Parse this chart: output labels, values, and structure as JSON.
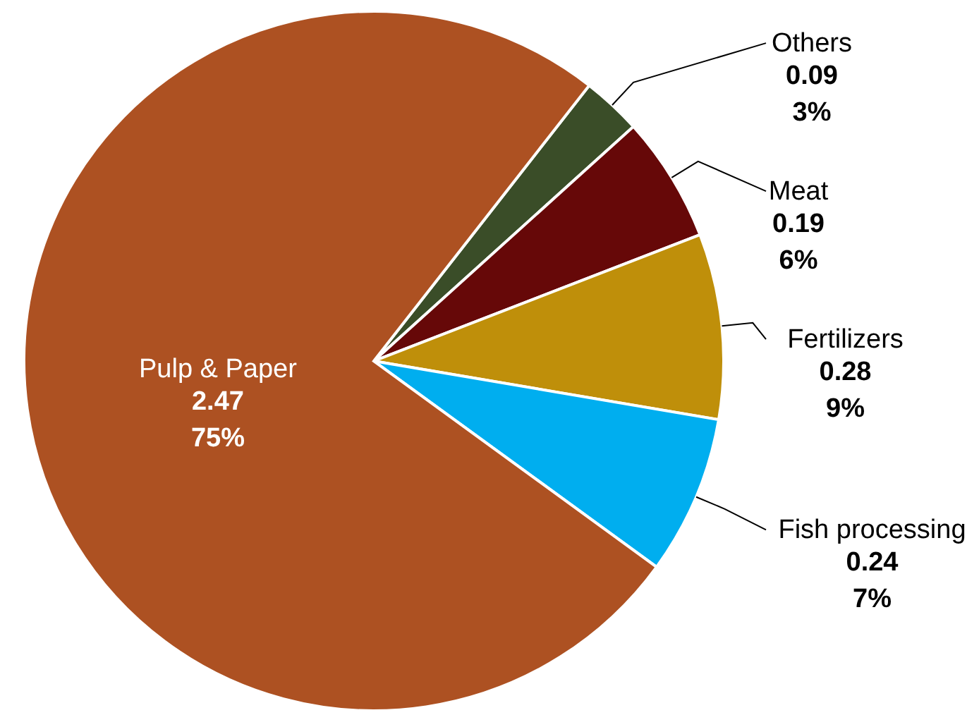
{
  "chart_data": {
    "type": "pie",
    "categories": [
      "Others",
      "Meat",
      "Fertilizers",
      "Fish processing",
      "Pulp & Paper"
    ],
    "values": [
      0.09,
      0.19,
      0.28,
      0.24,
      2.47
    ],
    "colors": [
      "#3a4d28",
      "#660808",
      "#bf8f0a",
      "#00aeef",
      "#ad5122"
    ],
    "value_labels": [
      "0.09\n3%",
      "0.19\n6%",
      "0.28\n9%",
      "0.24\n7%",
      "2.47\n75%"
    ]
  }
}
